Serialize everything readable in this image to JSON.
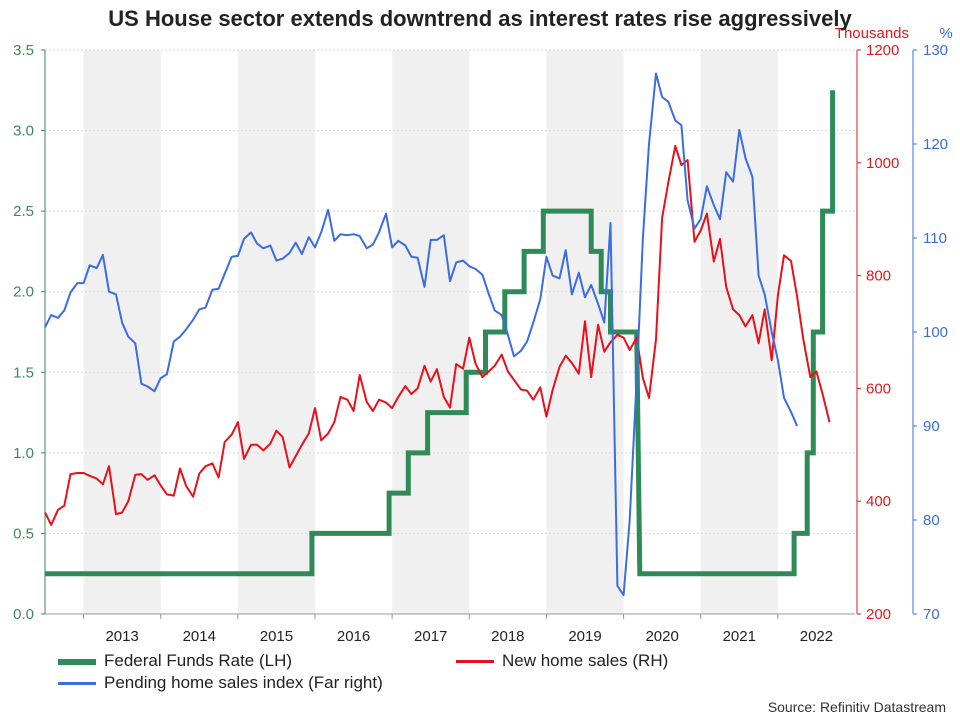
{
  "chart_data": {
    "type": "line",
    "title": "US House sector extends downtrend as interest rates rise aggressively",
    "x_tick_labels": [
      "2013",
      "2014",
      "2015",
      "2016",
      "2017",
      "2018",
      "2019",
      "2020",
      "2021",
      "2022"
    ],
    "x_range": [
      2012.5,
      2023.0
    ],
    "axes": {
      "left": {
        "label": "",
        "range": [
          0,
          3.5
        ],
        "ticks": [
          "0.0",
          "0.5",
          "1.0",
          "1.5",
          "2.0",
          "2.5",
          "3.0",
          "3.5"
        ],
        "tick_values": [
          0,
          0.5,
          1,
          1.5,
          2,
          2.5,
          3,
          3.5
        ],
        "color": "#3c8a5c"
      },
      "right": {
        "label": "Thousands",
        "range": [
          200,
          1200
        ],
        "ticks": [
          "200",
          "400",
          "600",
          "800",
          "1000",
          "1200"
        ],
        "tick_values": [
          200,
          400,
          600,
          800,
          1000,
          1200
        ],
        "color": "#e31a1c"
      },
      "far_right": {
        "label": "%",
        "range": [
          70,
          130
        ],
        "ticks": [
          "70",
          "80",
          "90",
          "100",
          "110",
          "120",
          "130"
        ],
        "tick_values": [
          70,
          80,
          90,
          100,
          110,
          120,
          130
        ],
        "color": "#3a6de0"
      }
    },
    "series": [
      {
        "name": "Federal Funds Rate (LH)",
        "axis": "left",
        "color": "#2e8b57",
        "width": 5,
        "step": true,
        "points": [
          [
            2012.5,
            0.25
          ],
          [
            2015.96,
            0.25
          ],
          [
            2015.96,
            0.5
          ],
          [
            2016.96,
            0.5
          ],
          [
            2016.96,
            0.75
          ],
          [
            2017.21,
            0.75
          ],
          [
            2017.21,
            1.0
          ],
          [
            2017.46,
            1.0
          ],
          [
            2017.46,
            1.25
          ],
          [
            2017.96,
            1.25
          ],
          [
            2017.96,
            1.5
          ],
          [
            2018.21,
            1.5
          ],
          [
            2018.21,
            1.75
          ],
          [
            2018.46,
            1.75
          ],
          [
            2018.46,
            2.0
          ],
          [
            2018.71,
            2.0
          ],
          [
            2018.71,
            2.25
          ],
          [
            2018.96,
            2.25
          ],
          [
            2018.96,
            2.5
          ],
          [
            2019.58,
            2.5
          ],
          [
            2019.58,
            2.25
          ],
          [
            2019.71,
            2.25
          ],
          [
            2019.71,
            2.0
          ],
          [
            2019.83,
            2.0
          ],
          [
            2019.83,
            1.75
          ],
          [
            2020.17,
            1.75
          ],
          [
            2020.21,
            0.25
          ],
          [
            2022.21,
            0.25
          ],
          [
            2022.21,
            0.5
          ],
          [
            2022.38,
            0.5
          ],
          [
            2022.38,
            1.0
          ],
          [
            2022.46,
            1.0
          ],
          [
            2022.46,
            1.75
          ],
          [
            2022.58,
            1.75
          ],
          [
            2022.58,
            2.5
          ],
          [
            2022.71,
            2.5
          ],
          [
            2022.71,
            3.25
          ]
        ]
      },
      {
        "name": "New home sales (RH)",
        "axis": "right",
        "color": "#e8101a",
        "width": 2,
        "points": [
          [
            2012.5,
            380
          ],
          [
            2012.58,
            358
          ],
          [
            2012.67,
            385
          ],
          [
            2012.75,
            392
          ],
          [
            2012.83,
            448
          ],
          [
            2012.92,
            450
          ],
          [
            2013.0,
            450
          ],
          [
            2013.08,
            445
          ],
          [
            2013.17,
            440
          ],
          [
            2013.25,
            430
          ],
          [
            2013.33,
            462
          ],
          [
            2013.42,
            377
          ],
          [
            2013.5,
            380
          ],
          [
            2013.58,
            400
          ],
          [
            2013.67,
            447
          ],
          [
            2013.75,
            448
          ],
          [
            2013.83,
            438
          ],
          [
            2013.92,
            446
          ],
          [
            2014.0,
            428
          ],
          [
            2014.08,
            412
          ],
          [
            2014.17,
            410
          ],
          [
            2014.25,
            458
          ],
          [
            2014.33,
            427
          ],
          [
            2014.42,
            408
          ],
          [
            2014.5,
            449
          ],
          [
            2014.58,
            462
          ],
          [
            2014.67,
            467
          ],
          [
            2014.75,
            442
          ],
          [
            2014.83,
            505
          ],
          [
            2014.92,
            518
          ],
          [
            2015.0,
            540
          ],
          [
            2015.08,
            475
          ],
          [
            2015.17,
            500
          ],
          [
            2015.25,
            500
          ],
          [
            2015.33,
            490
          ],
          [
            2015.42,
            502
          ],
          [
            2015.5,
            525
          ],
          [
            2015.58,
            514
          ],
          [
            2015.67,
            460
          ],
          [
            2015.75,
            480
          ],
          [
            2015.83,
            500
          ],
          [
            2015.92,
            520
          ],
          [
            2016.0,
            565
          ],
          [
            2016.08,
            508
          ],
          [
            2016.17,
            520
          ],
          [
            2016.25,
            540
          ],
          [
            2016.33,
            585
          ],
          [
            2016.42,
            580
          ],
          [
            2016.5,
            560
          ],
          [
            2016.58,
            624
          ],
          [
            2016.67,
            576
          ],
          [
            2016.75,
            560
          ],
          [
            2016.83,
            580
          ],
          [
            2016.92,
            575
          ],
          [
            2017.0,
            565
          ],
          [
            2017.08,
            585
          ],
          [
            2017.17,
            604
          ],
          [
            2017.25,
            590
          ],
          [
            2017.33,
            600
          ],
          [
            2017.42,
            640
          ],
          [
            2017.5,
            612
          ],
          [
            2017.58,
            634
          ],
          [
            2017.67,
            585
          ],
          [
            2017.75,
            566
          ],
          [
            2017.83,
            643
          ],
          [
            2017.92,
            635
          ],
          [
            2018.0,
            690
          ],
          [
            2018.08,
            644
          ],
          [
            2018.17,
            620
          ],
          [
            2018.25,
            630
          ],
          [
            2018.33,
            640
          ],
          [
            2018.42,
            660
          ],
          [
            2018.5,
            630
          ],
          [
            2018.58,
            615
          ],
          [
            2018.67,
            598
          ],
          [
            2018.75,
            596
          ],
          [
            2018.83,
            580
          ],
          [
            2018.92,
            602
          ],
          [
            2019.0,
            550
          ],
          [
            2019.08,
            597
          ],
          [
            2019.17,
            638
          ],
          [
            2019.25,
            658
          ],
          [
            2019.33,
            645
          ],
          [
            2019.42,
            626
          ],
          [
            2019.5,
            719
          ],
          [
            2019.58,
            620
          ],
          [
            2019.67,
            713
          ],
          [
            2019.75,
            665
          ],
          [
            2019.83,
            682
          ],
          [
            2019.92,
            695
          ],
          [
            2020.0,
            690
          ],
          [
            2020.08,
            668
          ],
          [
            2020.17,
            690
          ],
          [
            2020.25,
            618
          ],
          [
            2020.33,
            583
          ],
          [
            2020.42,
            687
          ],
          [
            2020.5,
            902
          ],
          [
            2020.58,
            965
          ],
          [
            2020.67,
            1030
          ],
          [
            2020.75,
            996
          ],
          [
            2020.83,
            1005
          ],
          [
            2020.92,
            860
          ],
          [
            2021.0,
            880
          ],
          [
            2021.08,
            910
          ],
          [
            2021.17,
            825
          ],
          [
            2021.25,
            865
          ],
          [
            2021.33,
            780
          ],
          [
            2021.42,
            740
          ],
          [
            2021.5,
            730
          ],
          [
            2021.58,
            710
          ],
          [
            2021.67,
            730
          ],
          [
            2021.75,
            680
          ],
          [
            2021.83,
            740
          ],
          [
            2021.92,
            650
          ],
          [
            2022.0,
            765
          ],
          [
            2022.08,
            836
          ],
          [
            2022.17,
            826
          ],
          [
            2022.25,
            763
          ],
          [
            2022.33,
            687
          ],
          [
            2022.42,
            620
          ],
          [
            2022.5,
            630
          ],
          [
            2022.58,
            590
          ],
          [
            2022.67,
            540
          ]
        ]
      },
      {
        "name": "Pending home sales index (Far right)",
        "axis": "far_right",
        "color": "#3a6de0",
        "width": 2,
        "points": [
          [
            2012.5,
            100.5
          ],
          [
            2012.58,
            101.8
          ],
          [
            2012.67,
            101.5
          ],
          [
            2012.75,
            102.3
          ],
          [
            2012.83,
            104.2
          ],
          [
            2012.92,
            105.2
          ],
          [
            2013.0,
            105.2
          ],
          [
            2013.08,
            107.1
          ],
          [
            2013.17,
            106.8
          ],
          [
            2013.25,
            108.2
          ],
          [
            2013.33,
            104.3
          ],
          [
            2013.42,
            104.0
          ],
          [
            2013.5,
            101.0
          ],
          [
            2013.58,
            99.5
          ],
          [
            2013.67,
            98.8
          ],
          [
            2013.75,
            94.5
          ],
          [
            2013.83,
            94.2
          ],
          [
            2013.92,
            93.7
          ],
          [
            2014.0,
            95.1
          ],
          [
            2014.08,
            95.5
          ],
          [
            2014.17,
            99.0
          ],
          [
            2014.25,
            99.5
          ],
          [
            2014.33,
            100.3
          ],
          [
            2014.42,
            101.3
          ],
          [
            2014.5,
            102.4
          ],
          [
            2014.58,
            102.6
          ],
          [
            2014.67,
            104.5
          ],
          [
            2014.75,
            104.6
          ],
          [
            2014.83,
            106.2
          ],
          [
            2014.92,
            108.0
          ],
          [
            2015.0,
            108.1
          ],
          [
            2015.08,
            109.9
          ],
          [
            2015.17,
            110.6
          ],
          [
            2015.25,
            109.4
          ],
          [
            2015.33,
            108.9
          ],
          [
            2015.42,
            109.2
          ],
          [
            2015.5,
            107.6
          ],
          [
            2015.58,
            107.8
          ],
          [
            2015.67,
            108.4
          ],
          [
            2015.75,
            109.5
          ],
          [
            2015.83,
            108.3
          ],
          [
            2015.92,
            110.1
          ],
          [
            2016.0,
            109.0
          ],
          [
            2016.08,
            110.6
          ],
          [
            2016.17,
            113.0
          ],
          [
            2016.25,
            109.7
          ],
          [
            2016.33,
            110.4
          ],
          [
            2016.42,
            110.3
          ],
          [
            2016.5,
            110.4
          ],
          [
            2016.58,
            110.2
          ],
          [
            2016.67,
            108.9
          ],
          [
            2016.75,
            109.3
          ],
          [
            2016.83,
            110.6
          ],
          [
            2016.92,
            112.6
          ],
          [
            2017.0,
            109.0
          ],
          [
            2017.08,
            109.7
          ],
          [
            2017.17,
            109.2
          ],
          [
            2017.25,
            108.0
          ],
          [
            2017.33,
            107.9
          ],
          [
            2017.42,
            104.8
          ],
          [
            2017.5,
            109.8
          ],
          [
            2017.58,
            109.8
          ],
          [
            2017.67,
            110.3
          ],
          [
            2017.75,
            105.4
          ],
          [
            2017.83,
            107.4
          ],
          [
            2017.92,
            107.6
          ],
          [
            2018.0,
            107.0
          ],
          [
            2018.08,
            106.7
          ],
          [
            2018.17,
            106.1
          ],
          [
            2018.25,
            104.1
          ],
          [
            2018.33,
            102.3
          ],
          [
            2018.42,
            101.8
          ],
          [
            2018.5,
            99.7
          ],
          [
            2018.58,
            97.4
          ],
          [
            2018.67,
            98.0
          ],
          [
            2018.75,
            99.0
          ],
          [
            2018.83,
            101.0
          ],
          [
            2018.92,
            103.5
          ],
          [
            2019.0,
            108.0
          ],
          [
            2019.08,
            106.0
          ],
          [
            2019.17,
            105.7
          ],
          [
            2019.25,
            108.7
          ],
          [
            2019.33,
            104.0
          ],
          [
            2019.42,
            106.3
          ],
          [
            2019.5,
            103.7
          ],
          [
            2019.58,
            105.0
          ],
          [
            2019.67,
            103.0
          ],
          [
            2019.75,
            101.0
          ],
          [
            2019.83,
            111.6
          ],
          [
            2019.92,
            73.0
          ],
          [
            2020.0,
            72.0
          ],
          [
            2020.08,
            80.0
          ],
          [
            2020.17,
            95.0
          ],
          [
            2020.25,
            110.0
          ],
          [
            2020.33,
            120.0
          ],
          [
            2020.42,
            127.5
          ],
          [
            2020.5,
            125.0
          ],
          [
            2020.58,
            124.5
          ],
          [
            2020.67,
            122.5
          ],
          [
            2020.75,
            122.0
          ],
          [
            2020.83,
            114.0
          ],
          [
            2020.92,
            111.0
          ],
          [
            2021.0,
            112.0
          ],
          [
            2021.08,
            115.5
          ],
          [
            2021.17,
            113.5
          ],
          [
            2021.25,
            112.0
          ],
          [
            2021.33,
            117.0
          ],
          [
            2021.42,
            116.0
          ],
          [
            2021.5,
            121.5
          ],
          [
            2021.58,
            118.5
          ],
          [
            2021.67,
            116.5
          ],
          [
            2021.75,
            106.0
          ],
          [
            2021.83,
            104.0
          ],
          [
            2021.92,
            100.0
          ],
          [
            2022.0,
            97.0
          ],
          [
            2022.08,
            93.0
          ],
          [
            2022.17,
            91.5
          ],
          [
            2022.25,
            90.0
          ]
        ]
      }
    ],
    "legend": {
      "placement": "bottom",
      "entries": [
        "Federal Funds Rate (LH)",
        "New home sales (RH)",
        "Pending home sales index (Far right)"
      ]
    },
    "shaded_years": [
      "2013",
      "2015",
      "2017",
      "2019",
      "2021"
    ],
    "grid": true
  },
  "footer": {
    "source": "Source: Refinitiv Datastream"
  }
}
